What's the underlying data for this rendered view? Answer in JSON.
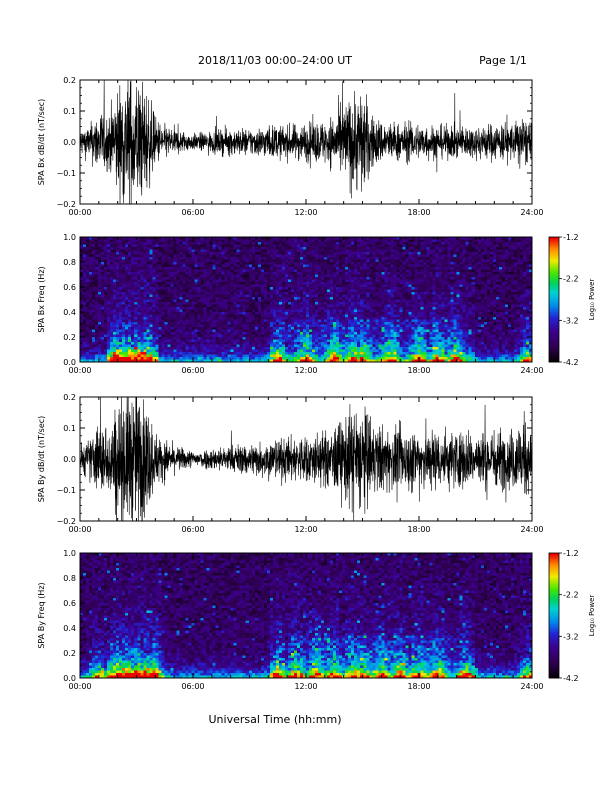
{
  "header": {
    "title": "2018/11/03  00:00–24:00 UT",
    "page": "Page 1/1"
  },
  "x_axis_label": "Universal Time (hh:mm)",
  "chart_data": [
    {
      "type": "line",
      "ylabel": "SPA Bx dB/dt (nT/sec)",
      "xlim": [
        0,
        24
      ],
      "x_ticks": [
        "00:00",
        "06:00",
        "12:00",
        "18:00",
        "24:00"
      ],
      "ylim": [
        -0.2,
        0.2
      ],
      "y_ticks": [
        "0.2",
        "0.1",
        "0.0",
        "−0.1",
        "−0.2"
      ],
      "amplitude_envelope": {
        "hours": [
          0,
          0.5,
          1,
          1.5,
          2,
          2.5,
          3,
          3.5,
          4,
          4.5,
          5,
          6,
          7,
          8,
          9,
          10,
          11,
          12,
          13,
          13.5,
          14,
          14.5,
          15,
          15.5,
          16,
          17,
          18,
          19,
          20,
          21,
          22,
          23,
          23.5,
          24
        ],
        "peak": [
          0.05,
          0.06,
          0.12,
          0.1,
          0.2,
          0.25,
          0.25,
          0.2,
          0.09,
          0.06,
          0.05,
          0.03,
          0.04,
          0.05,
          0.05,
          0.06,
          0.06,
          0.07,
          0.08,
          0.1,
          0.14,
          0.18,
          0.2,
          0.1,
          0.08,
          0.07,
          0.07,
          0.06,
          0.06,
          0.06,
          0.07,
          0.07,
          0.1,
          0.06
        ]
      }
    },
    {
      "type": "heatmap",
      "ylabel": "SPA Bx Freq (Hz)",
      "xlim": [
        0,
        24
      ],
      "x_ticks": [
        "00:00",
        "06:00",
        "12:00",
        "18:00",
        "24:00"
      ],
      "ylim": [
        0,
        1.0
      ],
      "y_ticks": [
        "1.0",
        "0.8",
        "0.6",
        "0.4",
        "0.2",
        "0.0"
      ],
      "colorbar": {
        "label": "Log₁₀ Power",
        "range": [
          -4.2,
          -1.2
        ],
        "ticks": [
          "-1.2",
          "-2.2",
          "-3.2",
          "-4.2"
        ]
      },
      "activity_hours": [
        2,
        2.5,
        3,
        3.5,
        10.5,
        12,
        13.5,
        14.5,
        15,
        16.5,
        18,
        19,
        20,
        23.8
      ]
    },
    {
      "type": "line",
      "ylabel": "SPA By dB/dt (nT/sec)",
      "xlim": [
        0,
        24
      ],
      "x_ticks": [
        "00:00",
        "06:00",
        "12:00",
        "18:00",
        "24:00"
      ],
      "ylim": [
        -0.2,
        0.2
      ],
      "y_ticks": [
        "0.2",
        "0.1",
        "0.0",
        "−0.1",
        "−0.2"
      ],
      "amplitude_envelope": {
        "hours": [
          0,
          0.5,
          1,
          1.5,
          2,
          2.5,
          3,
          3.5,
          4,
          4.5,
          5,
          6,
          7,
          8,
          9,
          10,
          11,
          12,
          13,
          13.5,
          14,
          14.5,
          15,
          15.5,
          16,
          17,
          18,
          19,
          20,
          21,
          22,
          23,
          23.5,
          24
        ],
        "peak": [
          0.06,
          0.07,
          0.14,
          0.12,
          0.22,
          0.26,
          0.26,
          0.22,
          0.1,
          0.07,
          0.05,
          0.03,
          0.04,
          0.05,
          0.06,
          0.07,
          0.08,
          0.09,
          0.1,
          0.12,
          0.15,
          0.2,
          0.2,
          0.14,
          0.12,
          0.11,
          0.12,
          0.11,
          0.11,
          0.1,
          0.11,
          0.11,
          0.17,
          0.08
        ]
      }
    },
    {
      "type": "heatmap",
      "ylabel": "SPA By Freq (Hz)",
      "xlim": [
        0,
        24
      ],
      "x_ticks": [
        "00:00",
        "06:00",
        "12:00",
        "18:00",
        "24:00"
      ],
      "ylim": [
        0,
        1.0
      ],
      "y_ticks": [
        "1.0",
        "0.8",
        "0.6",
        "0.4",
        "0.2",
        "0.0"
      ],
      "colorbar": {
        "label": "Log₁₀ Power",
        "range": [
          -4.2,
          -1.2
        ],
        "ticks": [
          "-1.2",
          "-2.2",
          "-3.2",
          "-4.2"
        ]
      },
      "activity_hours": [
        1,
        2,
        2.5,
        3,
        3.5,
        4,
        10.5,
        11.5,
        12.5,
        13.5,
        14.5,
        15,
        16,
        17,
        18,
        19,
        20.5,
        23.8
      ]
    }
  ]
}
